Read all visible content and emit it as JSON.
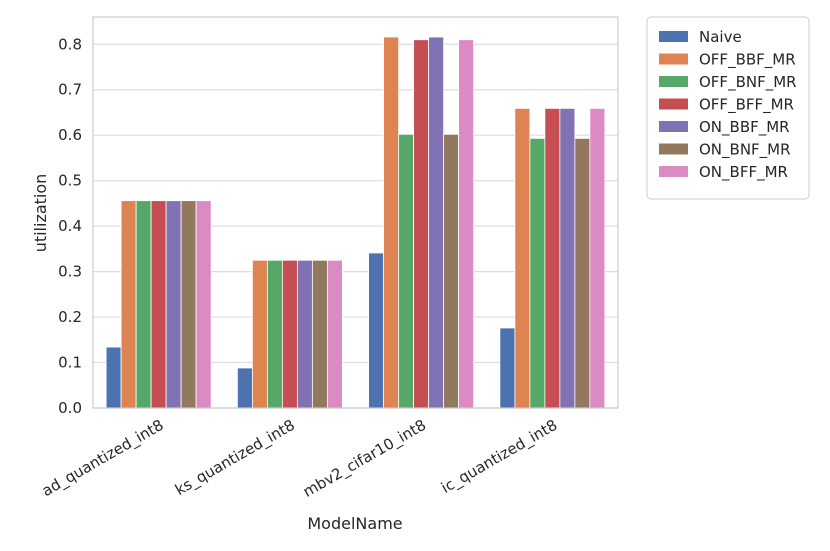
{
  "chart_data": {
    "type": "bar",
    "xlabel": "ModelName",
    "ylabel": "utilization",
    "ylim": [
      0,
      0.86
    ],
    "yticks": [
      0.0,
      0.1,
      0.2,
      0.3,
      0.4,
      0.5,
      0.6,
      0.7,
      0.8
    ],
    "ytick_labels": [
      "0.0",
      "0.1",
      "0.2",
      "0.3",
      "0.4",
      "0.5",
      "0.6",
      "0.7",
      "0.8"
    ],
    "grid": "horizontal",
    "legend_position": "outside-top-right",
    "categories": [
      "ad_quantized_int8",
      "ks_quantized_int8",
      "mbv2_cifar10_int8",
      "ic_quantized_int8"
    ],
    "series": [
      {
        "name": "Naive",
        "color": "#4c72b0",
        "values": [
          0.134,
          0.088,
          0.341,
          0.176
        ]
      },
      {
        "name": "OFF_BBF_MR",
        "color": "#dd8452",
        "values": [
          0.456,
          0.325,
          0.816,
          0.659
        ]
      },
      {
        "name": "OFF_BNF_MR",
        "color": "#55a868",
        "values": [
          0.456,
          0.325,
          0.602,
          0.593
        ]
      },
      {
        "name": "OFF_BFF_MR",
        "color": "#c44e52",
        "values": [
          0.456,
          0.325,
          0.81,
          0.659
        ]
      },
      {
        "name": "ON_BBF_MR",
        "color": "#8172b3",
        "values": [
          0.456,
          0.325,
          0.816,
          0.659
        ]
      },
      {
        "name": "ON_BNF_MR",
        "color": "#937860",
        "values": [
          0.456,
          0.325,
          0.602,
          0.593
        ]
      },
      {
        "name": "ON_BFF_MR",
        "color": "#da8bc3",
        "values": [
          0.456,
          0.325,
          0.81,
          0.659
        ]
      }
    ]
  }
}
